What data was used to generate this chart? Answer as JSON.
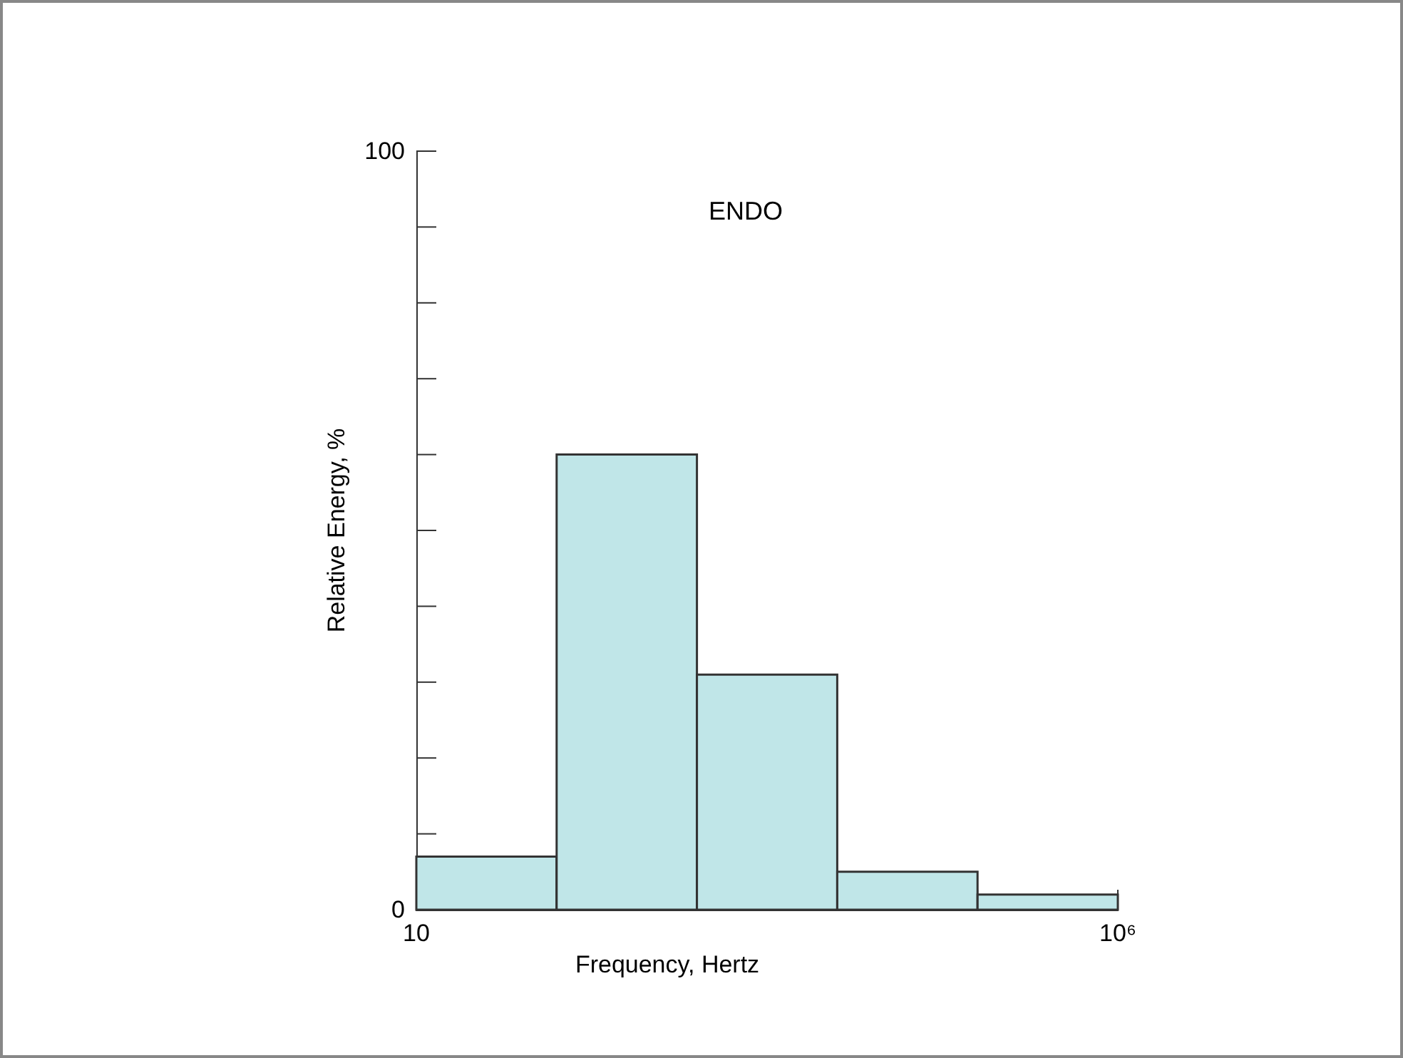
{
  "chart_data": {
    "type": "histogram",
    "title": "ENDO",
    "xlabel": "Frequency, Hertz",
    "ylabel": "Relative Energy, %",
    "bins": [
      10,
      100,
      1000,
      10000,
      100000,
      1000000
    ],
    "values": [
      7,
      60,
      31,
      5,
      2
    ],
    "color": "#c0e6e8",
    "log": "x",
    "xlim": [
      10,
      1000000
    ],
    "xticks": [
      10,
      {
        "value": 100,
        "label": null
      },
      {
        "value": 1000,
        "label": null
      },
      {
        "value": 10000,
        "label": null
      },
      {
        "value": 100000,
        "label": null
      },
      {
        "value": 1000000,
        "label": "10⁶"
      }
    ],
    "ylim": [
      0,
      100
    ],
    "yticks": [
      0,
      {
        "value": 10,
        "label": null
      },
      {
        "value": 20,
        "label": null
      },
      {
        "value": 30,
        "label": null
      },
      {
        "value": 40,
        "label": null
      },
      {
        "value": 50,
        "label": null
      },
      {
        "value": 60,
        "label": null
      },
      {
        "value": 70,
        "label": null
      },
      {
        "value": 80,
        "label": null
      },
      {
        "value": 90,
        "label": null
      },
      100
    ],
    "grid": false
  }
}
